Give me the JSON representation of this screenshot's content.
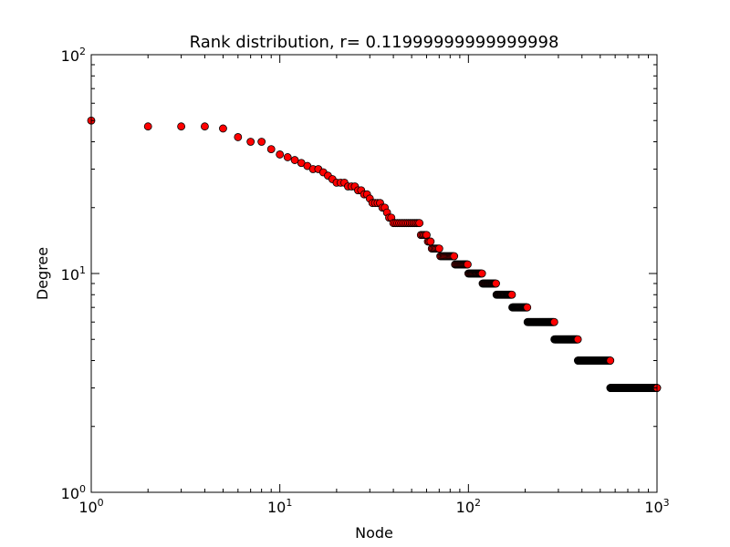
{
  "chart_data": {
    "type": "scatter",
    "title": "Rank distribution, r= 0.11999999999999998",
    "xlabel": "Node",
    "ylabel": "Degree",
    "xscale": "log",
    "yscale": "log",
    "xlim": [
      1,
      1000
    ],
    "ylim": [
      1,
      100
    ],
    "x_ticks": [
      {
        "value": 1,
        "base": "10",
        "exp": "0"
      },
      {
        "value": 10,
        "base": "10",
        "exp": "1"
      },
      {
        "value": 100,
        "base": "10",
        "exp": "2"
      },
      {
        "value": 1000,
        "base": "10",
        "exp": "3"
      }
    ],
    "y_ticks": [
      {
        "value": 1,
        "base": "10",
        "exp": "0"
      },
      {
        "value": 10,
        "base": "10",
        "exp": "1"
      },
      {
        "value": 100,
        "base": "10",
        "exp": "2"
      }
    ],
    "grid": false,
    "marker_fill": "#ff0000",
    "marker_edge": "#000000",
    "leading_points": [
      {
        "x": 1,
        "y": 50
      },
      {
        "x": 2,
        "y": 47
      },
      {
        "x": 3,
        "y": 47
      },
      {
        "x": 4,
        "y": 47
      },
      {
        "x": 5,
        "y": 46
      },
      {
        "x": 6,
        "y": 42
      },
      {
        "x": 7,
        "y": 40
      },
      {
        "x": 8,
        "y": 40
      },
      {
        "x": 9,
        "y": 37
      },
      {
        "x": 10,
        "y": 35
      },
      {
        "x": 11,
        "y": 34
      },
      {
        "x": 12,
        "y": 33
      },
      {
        "x": 13,
        "y": 32
      },
      {
        "x": 14,
        "y": 31
      },
      {
        "x": 15,
        "y": 30
      },
      {
        "x": 16,
        "y": 30
      },
      {
        "x": 17,
        "y": 29
      },
      {
        "x": 18,
        "y": 28
      },
      {
        "x": 19,
        "y": 27
      },
      {
        "x": 20,
        "y": 26
      },
      {
        "x": 21,
        "y": 26
      },
      {
        "x": 22,
        "y": 26
      },
      {
        "x": 23,
        "y": 25
      },
      {
        "x": 24,
        "y": 25
      },
      {
        "x": 25,
        "y": 25
      },
      {
        "x": 26,
        "y": 24
      },
      {
        "x": 27,
        "y": 24
      },
      {
        "x": 28,
        "y": 23
      },
      {
        "x": 29,
        "y": 23
      },
      {
        "x": 30,
        "y": 22
      },
      {
        "x": 31,
        "y": 21
      },
      {
        "x": 32,
        "y": 21
      },
      {
        "x": 33,
        "y": 21
      },
      {
        "x": 34,
        "y": 21
      },
      {
        "x": 35,
        "y": 20
      },
      {
        "x": 36,
        "y": 20
      },
      {
        "x": 37,
        "y": 19
      },
      {
        "x": 38,
        "y": 18
      },
      {
        "x": 39,
        "y": 18
      }
    ],
    "degree_runs": [
      {
        "degree": 17,
        "from": 40,
        "to": 55
      },
      {
        "degree": 15,
        "from": 56,
        "to": 60
      },
      {
        "degree": 14,
        "from": 61,
        "to": 63
      },
      {
        "degree": 13,
        "from": 64,
        "to": 70
      },
      {
        "degree": 12,
        "from": 71,
        "to": 84
      },
      {
        "degree": 11,
        "from": 85,
        "to": 99
      },
      {
        "degree": 10,
        "from": 100,
        "to": 118
      },
      {
        "degree": 9,
        "from": 119,
        "to": 140
      },
      {
        "degree": 8,
        "from": 141,
        "to": 170
      },
      {
        "degree": 7,
        "from": 171,
        "to": 205
      },
      {
        "degree": 6,
        "from": 206,
        "to": 285
      },
      {
        "degree": 5,
        "from": 286,
        "to": 380
      },
      {
        "degree": 4,
        "from": 381,
        "to": 565
      },
      {
        "degree": 3,
        "from": 566,
        "to": 1000
      }
    ]
  }
}
